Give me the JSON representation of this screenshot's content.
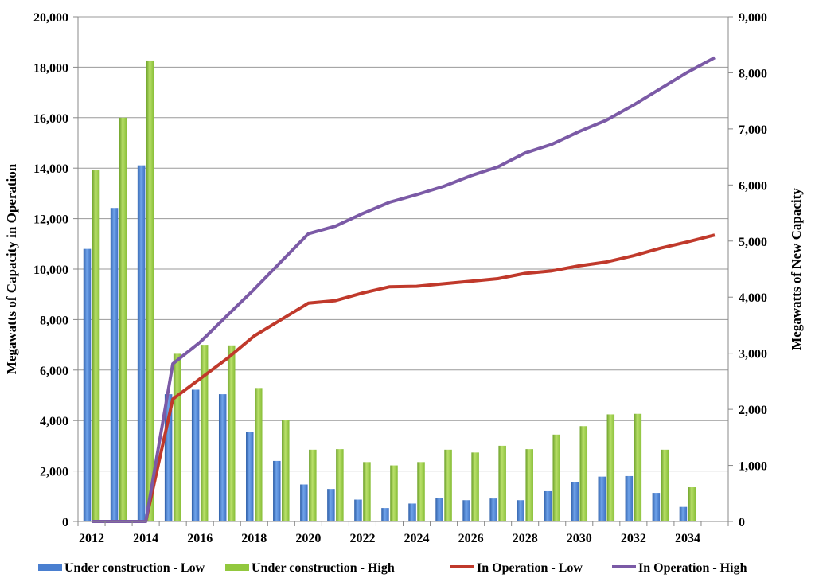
{
  "chart_data": {
    "type": "bar+line",
    "title": "",
    "x": [
      2012,
      2013,
      2014,
      2015,
      2016,
      2017,
      2018,
      2019,
      2020,
      2021,
      2022,
      2023,
      2024,
      2025,
      2026,
      2027,
      2028,
      2029,
      2030,
      2031,
      2032,
      2033,
      2034,
      2035
    ],
    "x_tick_labels": [
      "2012",
      "2014",
      "2016",
      "2018",
      "2020",
      "2022",
      "2024",
      "2026",
      "2028",
      "2030",
      "2032",
      "2034"
    ],
    "y_left": {
      "label": "Megawatts of Capacity in Operation",
      "range": [
        0,
        20000
      ],
      "ticks": [
        "0",
        "2,000",
        "4,000",
        "6,000",
        "8,000",
        "10,000",
        "12,000",
        "14,000",
        "16,000",
        "18,000",
        "20,000"
      ]
    },
    "y_right": {
      "label": "Megawatts of New Capacity",
      "range": [
        0,
        9000
      ],
      "ticks": [
        "0",
        "1,000",
        "2,000",
        "3,000",
        "4,000",
        "5,000",
        "6,000",
        "7,000",
        "8,000",
        "9,000"
      ]
    },
    "grid": "horizontal",
    "legend_position": "bottom",
    "series": [
      {
        "name": "Under construction - Low",
        "kind": "bar",
        "axis": "right",
        "color": "#4a7fd0",
        "values": [
          4860,
          5590,
          6350,
          2270,
          2350,
          2270,
          1600,
          1080,
          660,
          580,
          390,
          240,
          320,
          420,
          380,
          410,
          380,
          540,
          700,
          800,
          810,
          510,
          260,
          null
        ]
      },
      {
        "name": "Under construction - High",
        "kind": "bar",
        "axis": "right",
        "color": "#92c83e",
        "values": [
          6260,
          7200,
          8220,
          2990,
          3150,
          3140,
          2380,
          1810,
          1280,
          1290,
          1060,
          1000,
          1060,
          1280,
          1230,
          1350,
          1290,
          1550,
          1700,
          1910,
          1920,
          1280,
          610,
          null
        ]
      },
      {
        "name": "In Operation - Low",
        "kind": "line",
        "axis": "left",
        "color": "#c0392b",
        "values": [
          0,
          0,
          0,
          4850,
          5650,
          6450,
          7350,
          8000,
          8650,
          8750,
          9050,
          9300,
          9320,
          9420,
          9520,
          9620,
          9830,
          9930,
          10130,
          10280,
          10530,
          10830,
          11080,
          11350
        ]
      },
      {
        "name": "In Operation - High",
        "kind": "line",
        "axis": "left",
        "color": "#7b5aa6",
        "values": [
          0,
          0,
          0,
          6250,
          7100,
          8150,
          9200,
          10300,
          11400,
          11700,
          12200,
          12650,
          12950,
          13280,
          13700,
          14050,
          14600,
          14950,
          15450,
          15900,
          16500,
          17150,
          17800,
          18380
        ]
      }
    ]
  }
}
